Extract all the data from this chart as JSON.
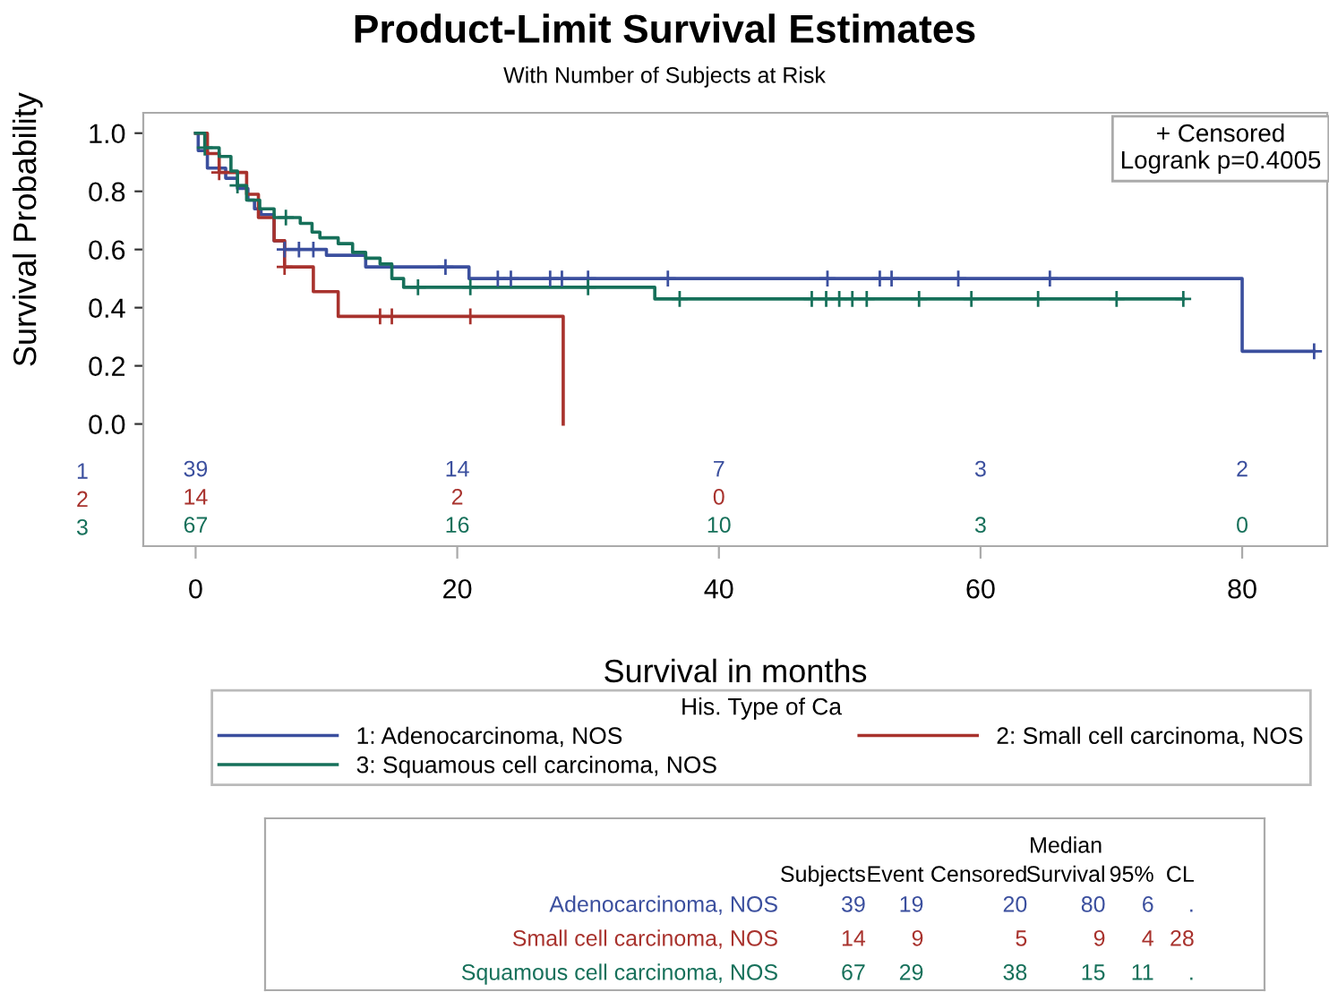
{
  "chart_data": [
    {
      "type": "step",
      "title": "Product-Limit Survival Estimates",
      "subtitle": "With Number of Subjects at Risk",
      "xlabel": "Survival in months",
      "ylabel": "Survival Probability",
      "legend_title": "His. Type of Ca",
      "legend": "bottom",
      "grid": false,
      "xlim": [
        -4,
        86.5
      ],
      "xticks": [
        0,
        20,
        40,
        60,
        80
      ],
      "ylim": [
        -0.42,
        1.07
      ],
      "yticks": [
        {
          "value": 0,
          "label": "0.0"
        },
        {
          "value": 0.2,
          "label": "0.2"
        },
        {
          "value": 0.4,
          "label": "0.4"
        },
        {
          "value": 0.6,
          "label": "0.6"
        },
        {
          "value": 0.8,
          "label": "0.8"
        },
        {
          "value": 1,
          "label": "1.0"
        }
      ],
      "annotations": [
        "+ Censored\nLogrank p=0.4005"
      ],
      "series": [
        {
          "name": "1: Adenocarcinoma, NOS",
          "color": "#3b4f9e",
          "marker": "none",
          "x": [
            0,
            0.2,
            0.9,
            2.3,
            3.2,
            4,
            4.5,
            5,
            6,
            6.8,
            10,
            13,
            20.9,
            80,
            85.5
          ],
          "values": [
            1,
            0.94,
            0.88,
            0.845,
            0.81,
            0.77,
            0.74,
            0.72,
            0.63,
            0.6,
            0.58,
            0.54,
            0.5,
            0.25,
            0.25
          ]
        },
        {
          "name": "2: Small cell carcinoma, NOS",
          "color": "#a8322d",
          "marker": "none",
          "x": [
            0,
            0.9,
            1.8,
            3.9,
            4.8,
            6,
            6.8,
            9,
            10.9,
            28.1,
            28.1
          ],
          "values": [
            1,
            0.93,
            0.865,
            0.79,
            0.71,
            0.63,
            0.54,
            0.455,
            0.37,
            0,
            0
          ]
        },
        {
          "name": "3: Squamous cell carcinoma, NOS",
          "color": "#16705a",
          "marker": "none",
          "x": [
            0,
            0.7,
            1.8,
            2.7,
            3.2,
            3.9,
            4.9,
            6,
            8,
            8.9,
            9.5,
            10.9,
            12,
            13,
            14.1,
            15,
            15.9,
            35.1,
            75.5
          ],
          "values": [
            1,
            0.95,
            0.92,
            0.87,
            0.82,
            0.77,
            0.74,
            0.71,
            0.69,
            0.66,
            0.64,
            0.62,
            0.59,
            0.57,
            0.55,
            0.5,
            0.47,
            0.43,
            0.43
          ]
        },
        {
          "type": "scatter",
          "color": "#3b4f9e",
          "marker": "cross",
          "x": [
            6.8,
            7.9,
            9,
            19.1,
            23.1,
            24.1,
            27.1,
            28,
            30,
            36.1,
            48.3,
            52.3,
            53.2,
            58.3,
            65.3,
            85.5
          ],
          "values": [
            0.6,
            0.6,
            0.6,
            0.54,
            0.5,
            0.5,
            0.5,
            0.5,
            0.5,
            0.5,
            0.5,
            0.5,
            0.5,
            0.5,
            0.5,
            0.25
          ]
        },
        {
          "type": "scatter",
          "color": "#a8322d",
          "marker": "cross",
          "x": [
            1.8,
            6.8,
            14.1,
            15,
            21
          ],
          "values": [
            0.865,
            0.54,
            0.37,
            0.37,
            0.37
          ]
        },
        {
          "type": "scatter",
          "color": "#16705a",
          "marker": "cross",
          "x": [
            0.7,
            3.2,
            6.9,
            17,
            21,
            30,
            37,
            47.1,
            48.2,
            49.2,
            50.2,
            51.3,
            55.3,
            59.3,
            64.4,
            70.4,
            75.5
          ],
          "values": [
            0.95,
            0.82,
            0.71,
            0.47,
            0.47,
            0.47,
            0.43,
            0.43,
            0.43,
            0.43,
            0.43,
            0.43,
            0.43,
            0.43,
            0.43,
            0.43,
            0.43
          ]
        }
      ]
    },
    {
      "type": "other",
      "y_categories": [
        "1",
        "2",
        "3"
      ],
      "colors": [
        "#3b4f9e",
        "#a8322d",
        "#16705a"
      ],
      "cell_labels": [
        [
          "39",
          "14",
          "7",
          "3",
          "2"
        ],
        [
          "14",
          "2",
          "0",
          null,
          null
        ],
        [
          "67",
          "16",
          "10",
          "3",
          "0"
        ]
      ]
    },
    {
      "type": "other",
      "categories": [
        "Subjects",
        "Event",
        "Censored",
        "Median\nSurvival",
        "95%",
        "CL"
      ],
      "y_categories": [
        "Adenocarcinoma, NOS",
        "Small cell carcinoma, NOS",
        "Squamous cell carcinoma, NOS"
      ],
      "colors": [
        "#3b4f9e",
        "#a8322d",
        "#16705a"
      ],
      "cell_labels": [
        [
          "39",
          "19",
          "20",
          "80",
          "6",
          "."
        ],
        [
          "14",
          "9",
          "5",
          "9",
          "4",
          "28"
        ],
        [
          "67",
          "29",
          "38",
          "15",
          "11",
          "."
        ]
      ]
    }
  ]
}
